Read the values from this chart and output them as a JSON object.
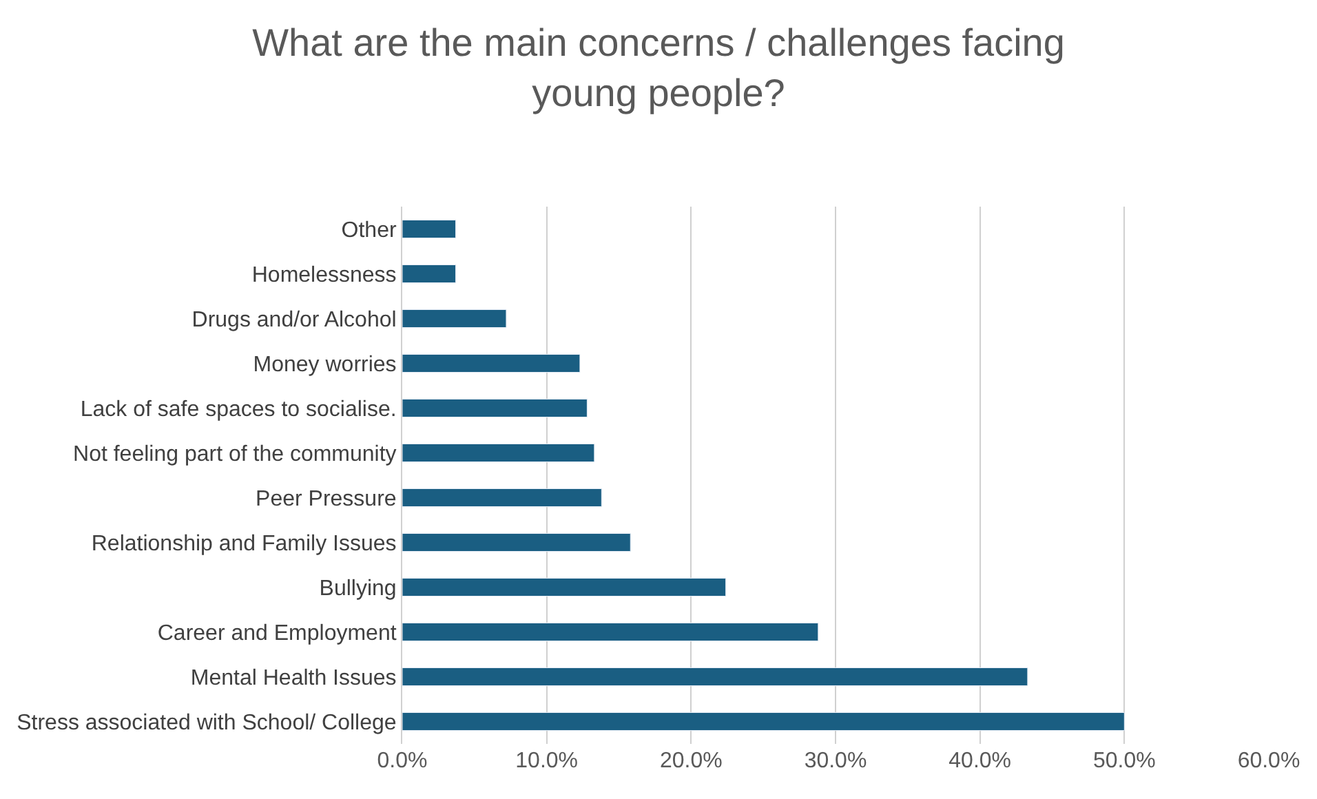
{
  "chart_data": {
    "type": "bar",
    "orientation": "horizontal",
    "title": "What are the main concerns / challenges facing young people?",
    "categories": [
      "Other",
      "Homelessness",
      "Drugs and/or Alcohol",
      "Money worries",
      "Lack of safe spaces to socialise.",
      "Not feeling part of the community",
      "Peer Pressure",
      "Relationship and Family Issues",
      "Bullying",
      "Career and Employment",
      "Mental Health Issues",
      "Stress associated with School/ College"
    ],
    "values": [
      3.7,
      3.7,
      7.2,
      12.3,
      12.8,
      13.3,
      13.8,
      15.8,
      22.4,
      28.8,
      43.3,
      50.0
    ],
    "color": "#1a5e82",
    "xlim": [
      0,
      60
    ],
    "xticks": [
      {
        "value": 0,
        "label": "0.0%"
      },
      {
        "value": 10,
        "label": "10.0%"
      },
      {
        "value": 20,
        "label": "20.0%"
      },
      {
        "value": 30,
        "label": "30.0%"
      },
      {
        "value": 40,
        "label": "40.0%"
      },
      {
        "value": 50,
        "label": "50.0%"
      },
      {
        "value": 60,
        "label": "60.0%"
      }
    ],
    "grid": "x"
  }
}
